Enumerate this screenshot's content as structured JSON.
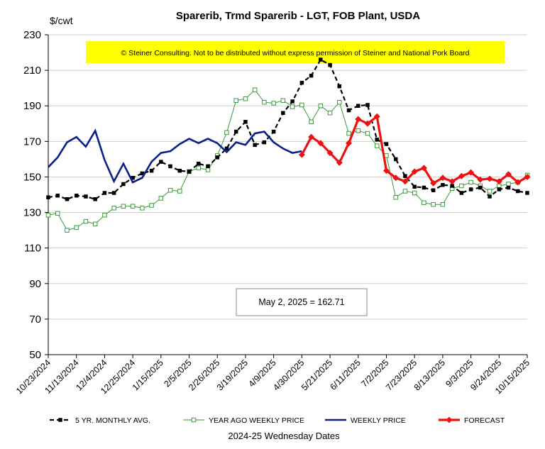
{
  "chart_data": {
    "type": "line",
    "title": "Sparerib, Trmd Sparerib - LGT, FOB Plant, USDA",
    "ylabel": "$/cwt",
    "xlabel": "2024-25 Wednesday  Dates",
    "ylim": [
      50,
      230
    ],
    "yticks": [
      50,
      70,
      90,
      110,
      130,
      150,
      170,
      190,
      210,
      230
    ],
    "x_start": "10/23/2024",
    "x_tick_labels": [
      "10/23/2024",
      "11/13/2024",
      "12/4/2024",
      "12/25/2024",
      "1/15/2025",
      "2/5/2025",
      "2/26/2025",
      "3/19/2025",
      "4/9/2025",
      "4/30/2025",
      "5/21/2025",
      "6/11/2025",
      "7/2/2025",
      "7/23/2025",
      "8/13/2025",
      "9/3/2025",
      "9/24/2025",
      "10/15/2025"
    ],
    "grid": "horizontal",
    "legend_position": "bottom",
    "banner_text": "© Steiner Consulting.  Not to be distributed without express permission of Steiner and National Pork Board",
    "annotation": {
      "text": "May 2, 2025  = 162.71",
      "x": "5/2/2025",
      "y": 162.71
    },
    "series": [
      {
        "name": "5 YR. MONTHLY AVG.",
        "color": "#000000",
        "style": "dashed-square",
        "x": [
          "10/23/2024",
          "10/30/2024",
          "11/6/2024",
          "11/13/2024",
          "11/20/2024",
          "11/27/2024",
          "12/4/2024",
          "12/11/2024",
          "12/18/2024",
          "12/25/2024",
          "1/1/2025",
          "1/8/2025",
          "1/15/2025",
          "1/22/2025",
          "1/29/2025",
          "2/5/2025",
          "2/12/2025",
          "2/19/2025",
          "2/26/2025",
          "3/5/2025",
          "3/12/2025",
          "3/19/2025",
          "3/26/2025",
          "4/2/2025",
          "4/9/2025",
          "4/16/2025",
          "4/23/2025",
          "4/30/2025",
          "5/7/2025",
          "5/14/2025",
          "5/21/2025",
          "5/28/2025",
          "6/4/2025",
          "6/11/2025",
          "6/18/2025",
          "6/25/2025",
          "7/2/2025",
          "7/9/2025",
          "7/16/2025",
          "7/23/2025",
          "7/30/2025",
          "8/6/2025",
          "8/13/2025",
          "8/20/2025",
          "8/27/2025",
          "9/3/2025",
          "9/10/2025",
          "9/17/2025",
          "9/24/2025",
          "10/1/2025",
          "10/8/2025",
          "10/15/2025"
        ],
        "values": [
          138.5,
          139.5,
          137.5,
          139.5,
          139,
          137.5,
          141,
          141,
          146,
          149.5,
          152,
          153.5,
          158.5,
          156,
          153.5,
          153,
          157.5,
          156,
          161,
          166,
          175.5,
          181,
          168,
          169.5,
          175.5,
          186,
          192.5,
          203,
          207,
          216,
          213,
          201,
          187.5,
          190,
          190.5,
          171,
          168.5,
          160,
          150.5,
          144.5,
          144,
          142.5,
          145.5,
          145,
          141,
          143,
          144,
          139,
          143,
          144,
          142,
          141
        ]
      },
      {
        "name": "YEAR AGO WEEKLY PRICE",
        "color": "#3a9a3a",
        "style": "thin-open-square",
        "x": [
          "10/23/2024",
          "10/30/2024",
          "11/6/2024",
          "11/13/2024",
          "11/20/2024",
          "11/27/2024",
          "12/4/2024",
          "12/11/2024",
          "12/18/2024",
          "12/25/2024",
          "1/1/2025",
          "1/8/2025",
          "1/15/2025",
          "1/22/2025",
          "1/29/2025",
          "2/5/2025",
          "2/12/2025",
          "2/19/2025",
          "2/26/2025",
          "3/5/2025",
          "3/12/2025",
          "3/19/2025",
          "3/26/2025",
          "4/2/2025",
          "4/9/2025",
          "4/16/2025",
          "4/23/2025",
          "4/30/2025",
          "5/7/2025",
          "5/14/2025",
          "5/21/2025",
          "5/28/2025",
          "6/4/2025",
          "6/11/2025",
          "6/18/2025",
          "6/25/2025",
          "7/2/2025",
          "7/9/2025",
          "7/16/2025",
          "7/23/2025",
          "7/30/2025",
          "8/6/2025",
          "8/13/2025",
          "8/20/2025",
          "8/27/2025",
          "9/3/2025",
          "9/10/2025",
          "9/17/2025",
          "9/24/2025",
          "10/1/2025",
          "10/8/2025",
          "10/15/2025"
        ],
        "values": [
          128.5,
          129.5,
          120,
          121.5,
          125,
          123.5,
          128.5,
          132.5,
          133.5,
          133.5,
          132.5,
          134,
          138,
          142.5,
          142,
          153,
          155,
          154,
          162,
          175,
          193,
          194,
          199,
          192,
          191.5,
          193,
          189.5,
          190.5,
          181,
          190,
          186,
          192,
          174.5,
          176,
          174.5,
          167.5,
          162,
          138.5,
          142,
          141,
          135.5,
          134.5,
          134.5,
          143.5,
          145,
          147,
          145,
          142,
          145,
          146,
          147,
          151
        ]
      },
      {
        "name": "WEEKLY PRICE",
        "color": "#0b1f8a",
        "style": "thick-solid",
        "x": [
          "10/23/2024",
          "10/30/2024",
          "11/6/2024",
          "11/13/2024",
          "11/20/2024",
          "11/27/2024",
          "12/4/2024",
          "12/11/2024",
          "12/18/2024",
          "12/25/2024",
          "1/1/2025",
          "1/8/2025",
          "1/15/2025",
          "1/22/2025",
          "1/29/2025",
          "2/5/2025",
          "2/12/2025",
          "2/19/2025",
          "2/26/2025",
          "3/5/2025",
          "3/12/2025",
          "3/19/2025",
          "3/26/2025",
          "4/2/2025",
          "4/9/2025",
          "4/16/2025",
          "4/23/2025",
          "4/30/2025"
        ],
        "values": [
          155.5,
          161,
          169.5,
          172.5,
          167,
          176,
          159.5,
          147.5,
          157.5,
          147,
          149.5,
          158.5,
          163.5,
          164.5,
          168.5,
          171.5,
          169,
          171.5,
          169,
          164,
          169.5,
          168,
          174.5,
          175.5,
          169.5,
          166,
          163.5,
          164.5
        ]
      },
      {
        "name": "FORECAST",
        "color": "#ee1111",
        "style": "thick-diamond",
        "x": [
          "4/30/2025",
          "5/7/2025",
          "5/14/2025",
          "5/21/2025",
          "5/28/2025",
          "6/4/2025",
          "6/11/2025",
          "6/18/2025",
          "6/25/2025",
          "7/2/2025",
          "7/9/2025",
          "7/16/2025",
          "7/23/2025",
          "7/30/2025",
          "8/6/2025",
          "8/13/2025",
          "8/20/2025",
          "8/27/2025",
          "9/3/2025",
          "9/10/2025",
          "9/17/2025",
          "9/24/2025",
          "10/1/2025",
          "10/8/2025",
          "10/15/2025"
        ],
        "values": [
          162.5,
          172.5,
          169,
          163.5,
          158,
          169,
          182.5,
          180,
          184,
          153.5,
          149.5,
          147.5,
          153,
          155,
          146.5,
          149.5,
          147.5,
          150.5,
          152.5,
          148.5,
          149,
          147.5,
          151.5,
          147,
          150
        ]
      }
    ]
  }
}
